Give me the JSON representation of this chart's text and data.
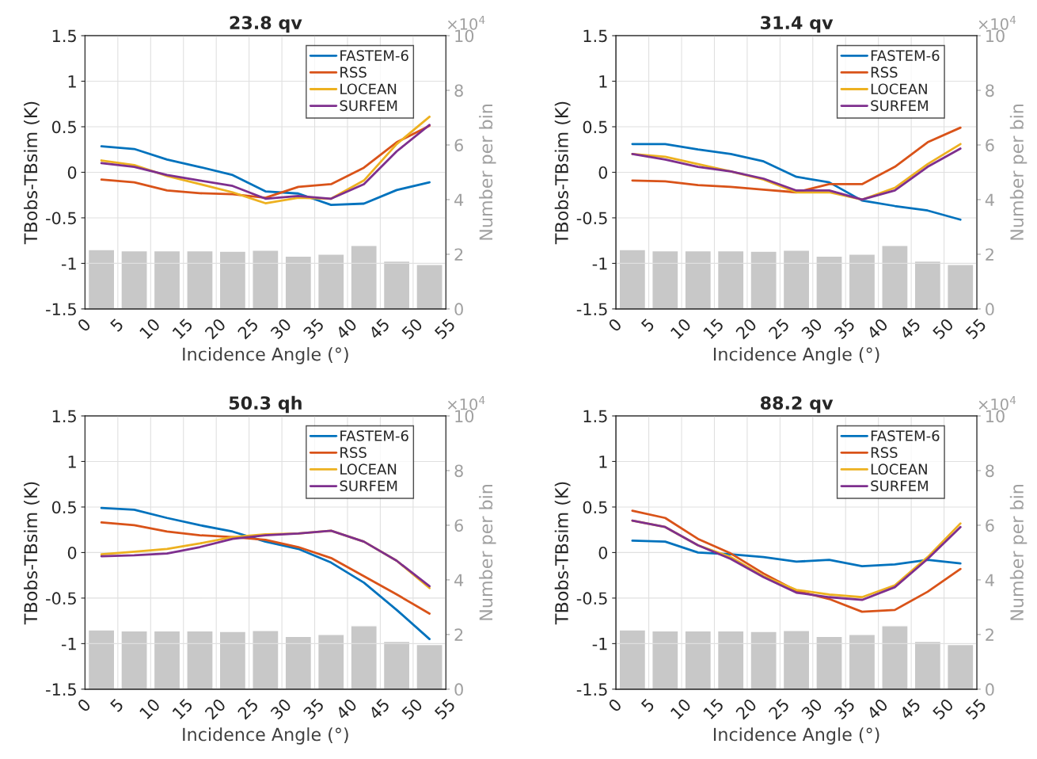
{
  "chart_data": [
    {
      "type": "line",
      "title": "23.8 qv",
      "xlabel": "Incidence Angle (°)",
      "ylabel": "TBobs-TBsim (K)",
      "y2label": "Number per bin",
      "annotations": [
        "×10$^{4}$"
      ],
      "xlim": [
        0,
        55
      ],
      "xticks": [
        0,
        5,
        10,
        15,
        20,
        25,
        30,
        35,
        40,
        45,
        50,
        55
      ],
      "ylim": [
        -1.5,
        1.5
      ],
      "yticks": [
        -1.5,
        -1,
        -0.5,
        0,
        0.5,
        1,
        1.5
      ],
      "y2lim": [
        0,
        10
      ],
      "y2ticks": [
        0,
        2,
        4,
        6,
        8,
        10
      ],
      "grid": true,
      "legend": "top right",
      "series": [
        {
          "type": "bar",
          "axis": "y2",
          "color": "#c8c8c8",
          "x": [
            2.5,
            7.5,
            12.5,
            17.5,
            22.5,
            27.5,
            32.5,
            37.5,
            42.5,
            47.5,
            52.5
          ],
          "values": [
            2.17,
            2.13,
            2.13,
            2.13,
            2.11,
            2.15,
            1.93,
            2.0,
            2.32,
            1.75,
            1.63
          ]
        },
        {
          "name": "FASTEM-6",
          "color": "#0072bd",
          "x": [
            2.5,
            7.5,
            12.5,
            17.5,
            22.5,
            27.5,
            32.5,
            37.5,
            42.5,
            47.5,
            52.5
          ],
          "values": [
            0.285,
            0.256,
            0.14,
            0.058,
            -0.03,
            -0.21,
            -0.233,
            -0.358,
            -0.344,
            -0.195,
            -0.11
          ]
        },
        {
          "name": "RSS",
          "color": "#d95319",
          "x": [
            2.5,
            7.5,
            12.5,
            17.5,
            22.5,
            27.5,
            32.5,
            37.5,
            42.5,
            47.5,
            52.5
          ],
          "values": [
            -0.08,
            -0.11,
            -0.2,
            -0.23,
            -0.24,
            -0.28,
            -0.16,
            -0.13,
            0.05,
            0.33,
            0.51
          ]
        },
        {
          "name": "LOCEAN",
          "color": "#edb120",
          "x": [
            2.5,
            7.5,
            12.5,
            17.5,
            22.5,
            27.5,
            32.5,
            37.5,
            42.5,
            47.5,
            52.5
          ],
          "values": [
            0.13,
            0.08,
            -0.04,
            -0.13,
            -0.22,
            -0.34,
            -0.28,
            -0.29,
            -0.09,
            0.31,
            0.61
          ]
        },
        {
          "name": "SURFEM",
          "color": "#7e2f8e",
          "x": [
            2.5,
            7.5,
            12.5,
            17.5,
            22.5,
            27.5,
            32.5,
            37.5,
            42.5,
            47.5,
            52.5
          ],
          "values": [
            0.1,
            0.06,
            -0.03,
            -0.09,
            -0.15,
            -0.29,
            -0.26,
            -0.29,
            -0.13,
            0.23,
            0.52
          ]
        }
      ]
    },
    {
      "type": "line",
      "title": "31.4 qv",
      "xlabel": "Incidence Angle (°)",
      "ylabel": "TBobs-TBsim (K)",
      "y2label": "Number per bin",
      "annotations": [
        "×10$^{4}$"
      ],
      "xlim": [
        0,
        55
      ],
      "xticks": [
        0,
        5,
        10,
        15,
        20,
        25,
        30,
        35,
        40,
        45,
        50,
        55
      ],
      "ylim": [
        -1.5,
        1.5
      ],
      "yticks": [
        -1.5,
        -1,
        -0.5,
        0,
        0.5,
        1,
        1.5
      ],
      "y2lim": [
        0,
        10
      ],
      "y2ticks": [
        0,
        2,
        4,
        6,
        8,
        10
      ],
      "grid": true,
      "legend": "top right",
      "series": [
        {
          "type": "bar",
          "axis": "y2",
          "color": "#c8c8c8",
          "x": [
            2.5,
            7.5,
            12.5,
            17.5,
            22.5,
            27.5,
            32.5,
            37.5,
            42.5,
            47.5,
            52.5
          ],
          "values": [
            2.17,
            2.13,
            2.13,
            2.13,
            2.11,
            2.15,
            1.93,
            2.0,
            2.32,
            1.75,
            1.63
          ]
        },
        {
          "name": "FASTEM-6",
          "color": "#0072bd",
          "x": [
            2.5,
            7.5,
            12.5,
            17.5,
            22.5,
            27.5,
            32.5,
            37.5,
            42.5,
            47.5,
            52.5
          ],
          "values": [
            0.31,
            0.31,
            0.25,
            0.2,
            0.12,
            -0.05,
            -0.11,
            -0.31,
            -0.37,
            -0.42,
            -0.52
          ]
        },
        {
          "name": "RSS",
          "color": "#d95319",
          "x": [
            2.5,
            7.5,
            12.5,
            17.5,
            22.5,
            27.5,
            32.5,
            37.5,
            42.5,
            47.5,
            52.5
          ],
          "values": [
            -0.09,
            -0.1,
            -0.14,
            -0.16,
            -0.19,
            -0.22,
            -0.13,
            -0.13,
            0.06,
            0.33,
            0.49
          ]
        },
        {
          "name": "LOCEAN",
          "color": "#edb120",
          "x": [
            2.5,
            7.5,
            12.5,
            17.5,
            22.5,
            27.5,
            32.5,
            37.5,
            42.5,
            47.5,
            52.5
          ],
          "values": [
            0.2,
            0.17,
            0.09,
            0.01,
            -0.08,
            -0.22,
            -0.22,
            -0.3,
            -0.17,
            0.09,
            0.31
          ]
        },
        {
          "name": "SURFEM",
          "color": "#7e2f8e",
          "x": [
            2.5,
            7.5,
            12.5,
            17.5,
            22.5,
            27.5,
            32.5,
            37.5,
            42.5,
            47.5,
            52.5
          ],
          "values": [
            0.2,
            0.14,
            0.06,
            0.01,
            -0.07,
            -0.2,
            -0.2,
            -0.3,
            -0.2,
            0.06,
            0.26
          ]
        }
      ]
    },
    {
      "type": "line",
      "title": "50.3 qh",
      "xlabel": "Incidence Angle (°)",
      "ylabel": "TBobs-TBsim (K)",
      "y2label": "Number per bin",
      "annotations": [
        "×10$^{4}$"
      ],
      "xlim": [
        0,
        55
      ],
      "xticks": [
        0,
        5,
        10,
        15,
        20,
        25,
        30,
        35,
        40,
        45,
        50,
        55
      ],
      "ylim": [
        -1.5,
        1.5
      ],
      "yticks": [
        -1.5,
        -1,
        -0.5,
        0,
        0.5,
        1,
        1.5
      ],
      "y2lim": [
        0,
        10
      ],
      "y2ticks": [
        0,
        2,
        4,
        6,
        8,
        10
      ],
      "grid": true,
      "legend": "top right",
      "series": [
        {
          "type": "bar",
          "axis": "y2",
          "color": "#c8c8c8",
          "x": [
            2.5,
            7.5,
            12.5,
            17.5,
            22.5,
            27.5,
            32.5,
            37.5,
            42.5,
            47.5,
            52.5
          ],
          "values": [
            2.17,
            2.13,
            2.13,
            2.13,
            2.11,
            2.15,
            1.93,
            2.0,
            2.32,
            1.75,
            1.63
          ]
        },
        {
          "name": "FASTEM-6",
          "color": "#0072bd",
          "x": [
            2.5,
            7.5,
            12.5,
            17.5,
            22.5,
            27.5,
            32.5,
            37.5,
            42.5,
            47.5,
            52.5
          ],
          "values": [
            0.49,
            0.47,
            0.38,
            0.3,
            0.23,
            0.12,
            0.04,
            -0.11,
            -0.33,
            -0.63,
            -0.95
          ]
        },
        {
          "name": "RSS",
          "color": "#d95319",
          "x": [
            2.5,
            7.5,
            12.5,
            17.5,
            22.5,
            27.5,
            32.5,
            37.5,
            42.5,
            47.5,
            52.5
          ],
          "values": [
            0.33,
            0.3,
            0.23,
            0.19,
            0.17,
            0.14,
            0.06,
            -0.06,
            -0.26,
            -0.46,
            -0.67
          ]
        },
        {
          "name": "LOCEAN",
          "color": "#edb120",
          "x": [
            2.5,
            7.5,
            12.5,
            17.5,
            22.5,
            27.5,
            32.5,
            37.5,
            42.5,
            47.5,
            52.5
          ],
          "values": [
            -0.02,
            0.01,
            0.04,
            0.1,
            0.17,
            0.2,
            0.21,
            0.24,
            0.12,
            -0.09,
            -0.39
          ]
        },
        {
          "name": "SURFEM",
          "color": "#7e2f8e",
          "x": [
            2.5,
            7.5,
            12.5,
            17.5,
            22.5,
            27.5,
            32.5,
            37.5,
            42.5,
            47.5,
            52.5
          ],
          "values": [
            -0.04,
            -0.03,
            -0.01,
            0.06,
            0.15,
            0.19,
            0.21,
            0.24,
            0.12,
            -0.09,
            -0.37
          ]
        }
      ]
    },
    {
      "type": "line",
      "title": "88.2 qv",
      "xlabel": "Incidence Angle (°)",
      "ylabel": "TBobs-TBsim (K)",
      "y2label": "Number per bin",
      "annotations": [
        "×10$^{4}$"
      ],
      "xlim": [
        0,
        55
      ],
      "xticks": [
        0,
        5,
        10,
        15,
        20,
        25,
        30,
        35,
        40,
        45,
        50,
        55
      ],
      "ylim": [
        -1.5,
        1.5
      ],
      "yticks": [
        -1.5,
        -1,
        -0.5,
        0,
        0.5,
        1,
        1.5
      ],
      "y2lim": [
        0,
        10
      ],
      "y2ticks": [
        0,
        2,
        4,
        6,
        8,
        10
      ],
      "grid": true,
      "legend": "top right",
      "series": [
        {
          "type": "bar",
          "axis": "y2",
          "color": "#c8c8c8",
          "x": [
            2.5,
            7.5,
            12.5,
            17.5,
            22.5,
            27.5,
            32.5,
            37.5,
            42.5,
            47.5,
            52.5
          ],
          "values": [
            2.17,
            2.13,
            2.13,
            2.13,
            2.11,
            2.15,
            1.93,
            2.0,
            2.32,
            1.75,
            1.63
          ]
        },
        {
          "name": "FASTEM-6",
          "color": "#0072bd",
          "x": [
            2.5,
            7.5,
            12.5,
            17.5,
            22.5,
            27.5,
            32.5,
            37.5,
            42.5,
            47.5,
            52.5
          ],
          "values": [
            0.13,
            0.12,
            0.0,
            -0.02,
            -0.05,
            -0.1,
            -0.08,
            -0.15,
            -0.13,
            -0.08,
            -0.12
          ]
        },
        {
          "name": "RSS",
          "color": "#d95319",
          "x": [
            2.5,
            7.5,
            12.5,
            17.5,
            22.5,
            27.5,
            32.5,
            37.5,
            42.5,
            47.5,
            52.5
          ],
          "values": [
            0.46,
            0.38,
            0.15,
            -0.01,
            -0.23,
            -0.42,
            -0.51,
            -0.65,
            -0.63,
            -0.43,
            -0.18
          ]
        },
        {
          "name": "LOCEAN",
          "color": "#edb120",
          "x": [
            2.5,
            7.5,
            12.5,
            17.5,
            22.5,
            27.5,
            32.5,
            37.5,
            42.5,
            47.5,
            52.5
          ],
          "values": [
            0.35,
            0.28,
            0.08,
            -0.05,
            -0.26,
            -0.41,
            -0.46,
            -0.49,
            -0.36,
            -0.05,
            0.32
          ]
        },
        {
          "name": "SURFEM",
          "color": "#7e2f8e",
          "x": [
            2.5,
            7.5,
            12.5,
            17.5,
            22.5,
            27.5,
            32.5,
            37.5,
            42.5,
            47.5,
            52.5
          ],
          "values": [
            0.35,
            0.28,
            0.08,
            -0.07,
            -0.27,
            -0.44,
            -0.49,
            -0.52,
            -0.38,
            -0.07,
            0.28
          ]
        }
      ]
    }
  ]
}
